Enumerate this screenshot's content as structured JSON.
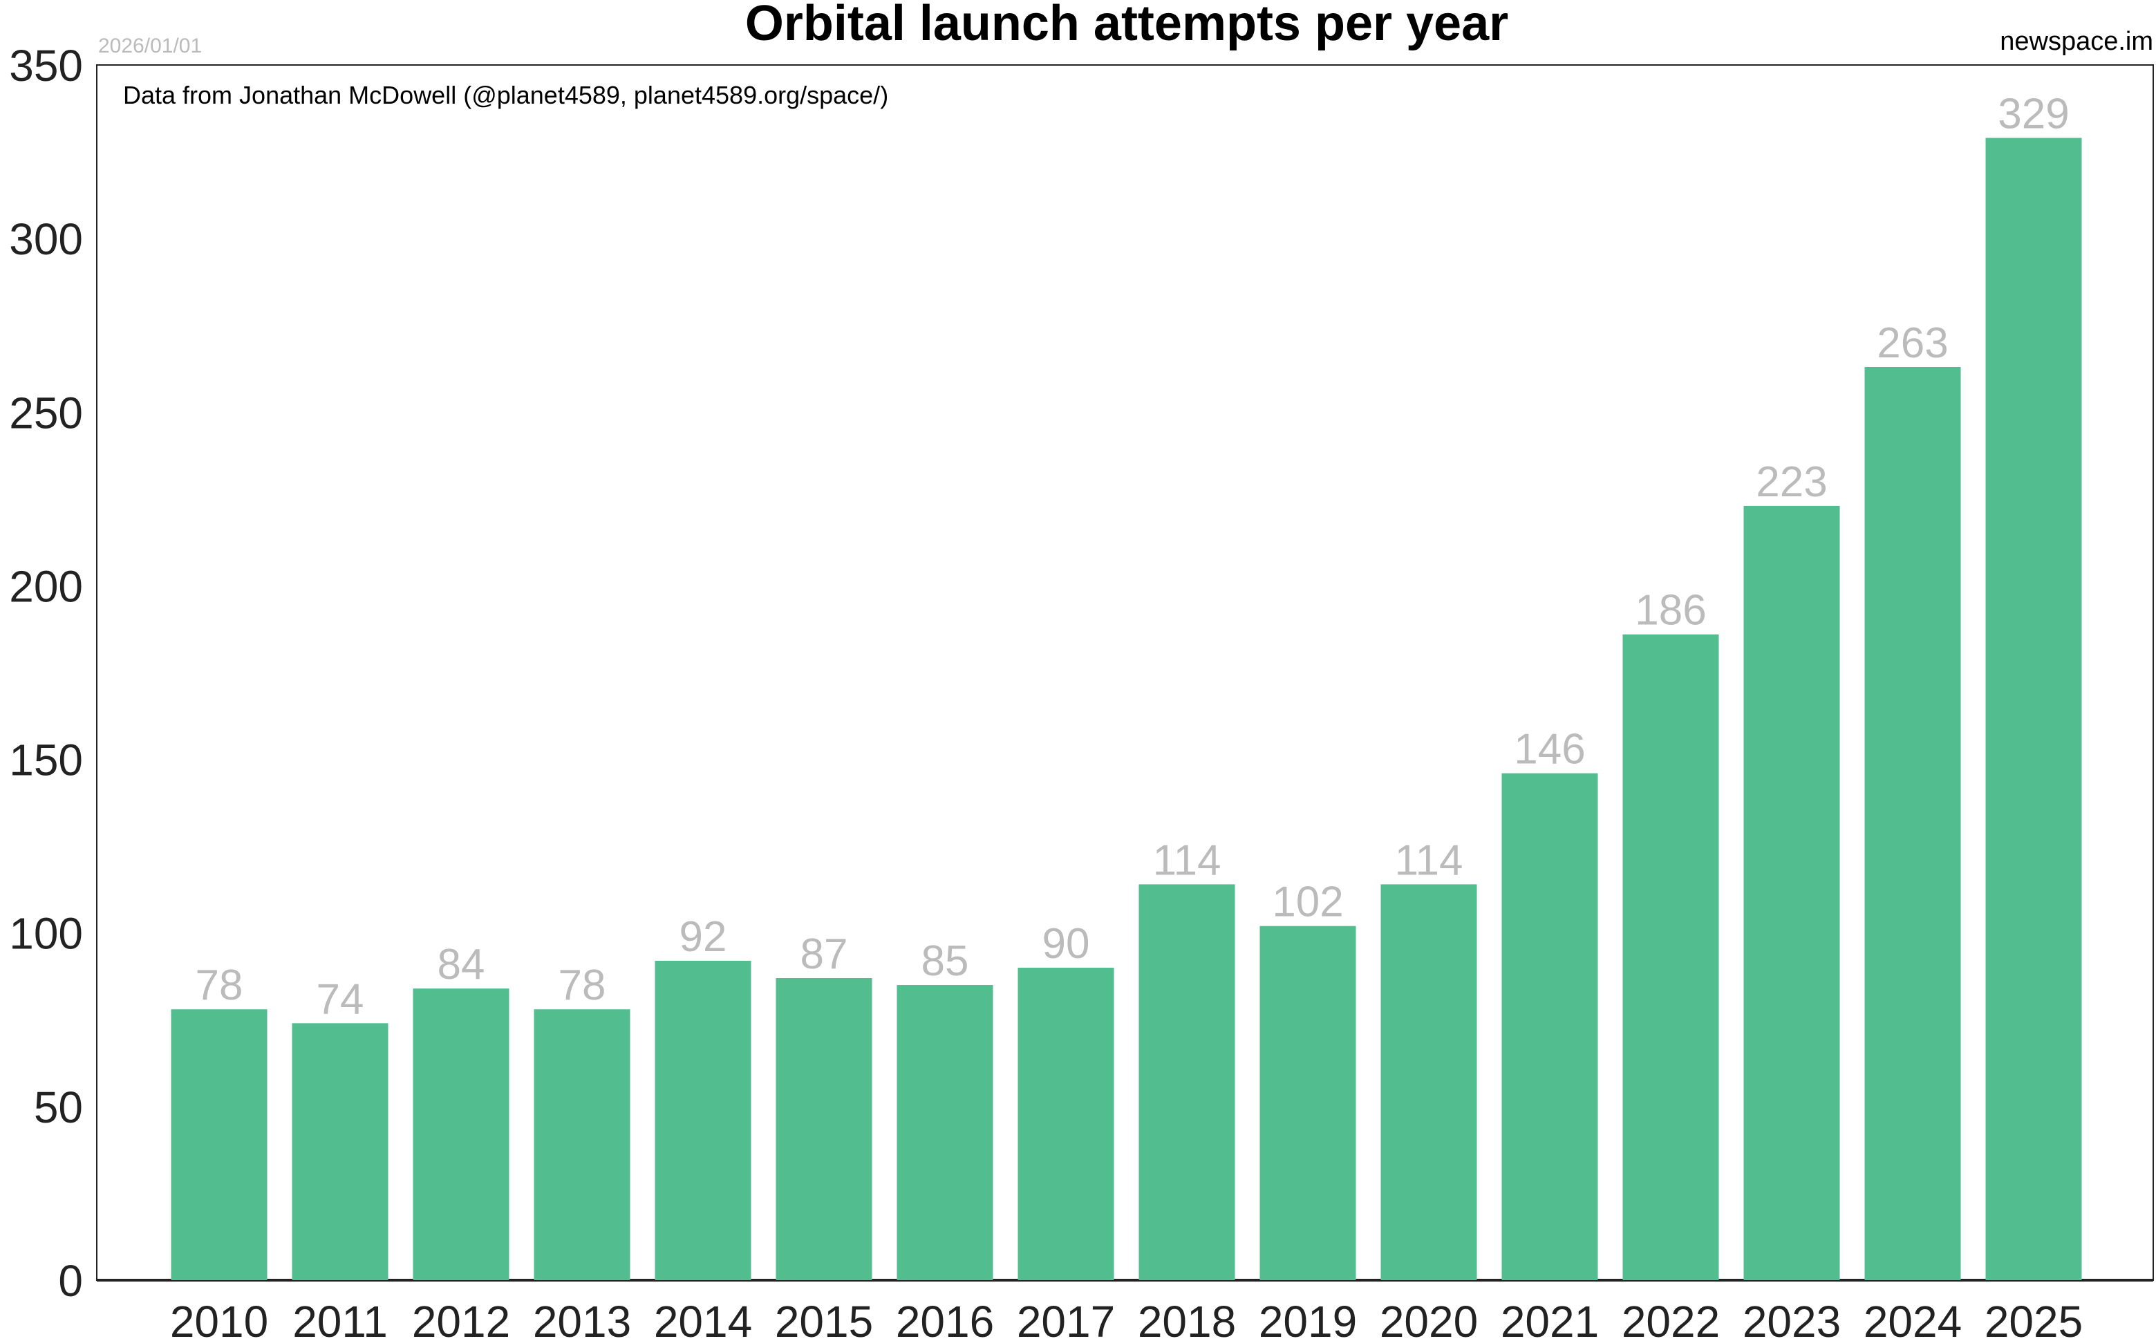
{
  "header": {
    "date": "2026/01/01",
    "site": "newspace.im"
  },
  "chart_data": {
    "type": "bar",
    "title": "Orbital launch attempts per year",
    "annotation": "Data from Jonathan McDowell (@planet4589, planet4589.org/space/)",
    "xlabel": "",
    "ylabel": "",
    "categories": [
      "2010",
      "2011",
      "2012",
      "2013",
      "2014",
      "2015",
      "2016",
      "2017",
      "2018",
      "2019",
      "2020",
      "2021",
      "2022",
      "2023",
      "2024",
      "2025"
    ],
    "values": [
      78,
      74,
      84,
      78,
      92,
      87,
      85,
      90,
      114,
      102,
      114,
      146,
      186,
      223,
      263,
      329
    ],
    "ylim": [
      0,
      350
    ],
    "yticks": [
      0,
      50,
      100,
      150,
      200,
      250,
      300,
      350
    ],
    "grid": false,
    "data_labels": true,
    "colors": {
      "bar": "#52bd8f",
      "data_label": "#bbbbbb"
    }
  }
}
